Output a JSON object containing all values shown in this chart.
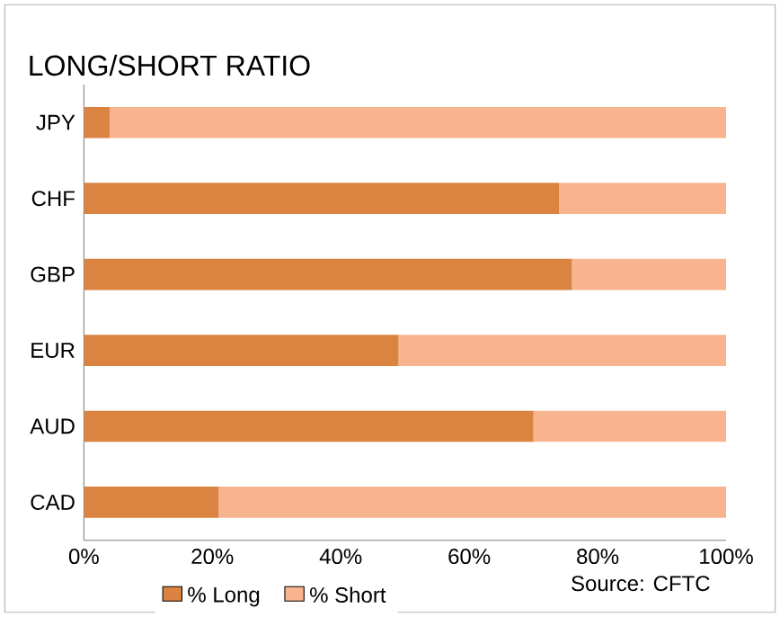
{
  "chart_data": {
    "type": "bar",
    "orientation": "horizontal",
    "stacked": true,
    "title": "LONG/SHORT RATIO",
    "categories": [
      "JPY",
      "CHF",
      "GBP",
      "EUR",
      "AUD",
      "CAD"
    ],
    "series": [
      {
        "name": "% Long",
        "color": "#db8340",
        "values": [
          4,
          74,
          76,
          49,
          70,
          21
        ]
      },
      {
        "name": "% Short",
        "color": "#f8b48f",
        "values": [
          96,
          26,
          24,
          51,
          30,
          79
        ]
      }
    ],
    "xlim": [
      0,
      100
    ],
    "xticks": [
      {
        "value": 0,
        "label": "0%"
      },
      {
        "value": 20,
        "label": "20%"
      },
      {
        "value": 40,
        "label": "40%"
      },
      {
        "value": 60,
        "label": "60%"
      },
      {
        "value": 80,
        "label": "80%"
      },
      {
        "value": 100,
        "label": "100%"
      }
    ],
    "grid": false,
    "legend": "bottom",
    "annotations": [
      "Source: CFTC"
    ]
  }
}
